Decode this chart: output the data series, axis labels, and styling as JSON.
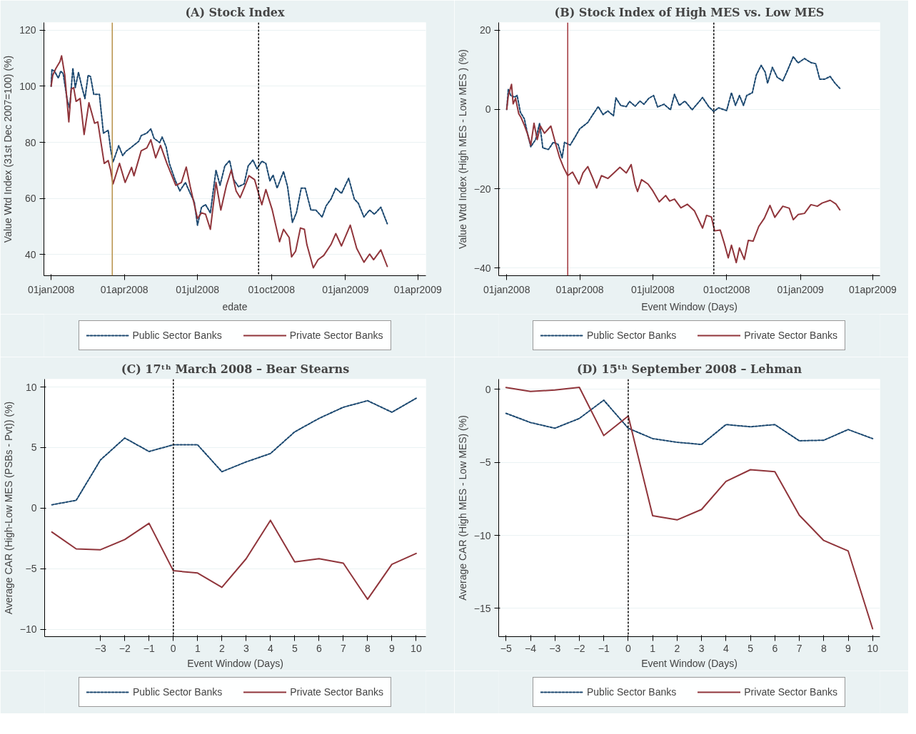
{
  "chart_data": [
    {
      "type": "line",
      "title": "(A) Stock Index",
      "xlabel": "edate",
      "ylabel": "Value Wtd Index (31st Dec 2007=100) (%)",
      "xlim": [
        "2007-12-23",
        "2009-04-11"
      ],
      "xticks": [
        {
          "value": "2008-01-01",
          "label": "01jan2008"
        },
        {
          "value": "2008-04-01",
          "label": "01apr2008"
        },
        {
          "value": "2008-07-01",
          "label": "01jul2008"
        },
        {
          "value": "2008-10-01",
          "label": "01oct2008"
        },
        {
          "value": "2009-01-01",
          "label": "01jan2009"
        },
        {
          "value": "2009-04-01",
          "label": "01apr2009"
        }
      ],
      "ylim": [
        32.5,
        122.7
      ],
      "yticks": [
        40,
        60,
        80,
        100,
        120
      ],
      "grid": "y",
      "legend": "bottom",
      "ref_lines": [
        {
          "axis": "x",
          "value": "2008-03-17",
          "color": "#b8924a",
          "line_style": "solid"
        },
        {
          "axis": "x",
          "value": "2008-09-15",
          "color": "#000000",
          "line_style": "dashed"
        }
      ],
      "series": [
        {
          "name": "Public Sector Banks",
          "color": "#1a476f",
          "line_style": "dashed",
          "x": [
            "2008-01-01",
            "2008-01-02",
            "2008-01-05",
            "2008-01-10",
            "2008-01-13",
            "2008-01-16",
            "2008-01-21",
            "2008-01-24",
            "2008-01-28",
            "2008-01-31",
            "2008-02-04",
            "2008-02-08",
            "2008-02-12",
            "2008-02-16",
            "2008-02-19",
            "2008-02-23",
            "2008-03-01",
            "2008-03-06",
            "2008-03-12",
            "2008-03-15",
            "2008-03-18",
            "2008-03-25",
            "2008-03-30",
            "2008-04-03",
            "2008-04-10",
            "2008-04-19",
            "2008-04-22",
            "2008-04-29",
            "2008-05-04",
            "2008-05-08",
            "2008-05-15",
            "2008-05-18",
            "2008-05-23",
            "2008-05-27",
            "2008-06-03",
            "2008-06-09",
            "2008-06-16",
            "2008-06-22",
            "2008-06-27",
            "2008-07-01",
            "2008-07-06",
            "2008-07-11",
            "2008-07-17",
            "2008-07-24",
            "2008-07-29",
            "2008-08-04",
            "2008-08-10",
            "2008-08-15",
            "2008-08-21",
            "2008-08-28",
            "2008-09-02",
            "2008-09-08",
            "2008-09-13",
            "2008-09-19",
            "2008-09-24",
            "2008-09-29",
            "2008-10-03",
            "2008-10-08",
            "2008-10-16",
            "2008-10-21",
            "2008-10-27",
            "2008-11-01",
            "2008-11-07",
            "2008-11-12",
            "2008-11-19",
            "2008-11-25",
            "2008-12-03",
            "2008-12-08",
            "2008-12-14",
            "2008-12-20",
            "2008-12-27",
            "2009-01-05",
            "2009-01-12",
            "2009-01-17",
            "2009-01-24",
            "2009-01-31",
            "2009-02-06",
            "2009-02-14",
            "2009-02-22"
          ],
          "values": [
            100,
            105.9,
            105.4,
            102.9,
            105.4,
            104.4,
            95.1,
            92.2,
            106.4,
            99.5,
            104.9,
            100,
            95.6,
            103.9,
            103.4,
            97.1,
            97.1,
            83.3,
            84.3,
            77.5,
            73.0,
            78.8,
            75.3,
            76.8,
            78.3,
            80.4,
            82.4,
            83.3,
            84.8,
            81.4,
            79.9,
            81.9,
            78.4,
            72.5,
            66.7,
            62.7,
            65.7,
            61.8,
            58.8,
            50.5,
            56.9,
            57.8,
            54.9,
            70.1,
            64.7,
            71.6,
            73.5,
            66.7,
            64.2,
            65.2,
            71.6,
            73.7,
            70.6,
            73.3,
            72.5,
            66.3,
            68.3,
            63.7,
            69.6,
            64.2,
            51.5,
            54.9,
            63.7,
            63.7,
            55.9,
            55.9,
            53.4,
            57.4,
            59.8,
            63.7,
            61.8,
            67.2,
            59.8,
            58.3,
            53.4,
            55.9,
            54.4,
            56.9,
            51.0
          ]
        },
        {
          "name": "Private Sector Banks",
          "color": "#90353b",
          "line_style": "solid",
          "x": [
            "2008-01-01",
            "2008-01-03",
            "2008-01-07",
            "2008-01-12",
            "2008-01-14",
            "2008-01-18",
            "2008-01-23",
            "2008-01-26",
            "2008-01-29",
            "2008-02-01",
            "2008-02-06",
            "2008-02-11",
            "2008-02-17",
            "2008-02-24",
            "2008-02-28",
            "2008-03-07",
            "2008-03-12",
            "2008-03-15",
            "2008-03-18",
            "2008-03-26",
            "2008-04-02",
            "2008-04-10",
            "2008-04-13",
            "2008-04-22",
            "2008-04-29",
            "2008-05-04",
            "2008-05-10",
            "2008-05-16",
            "2008-05-24",
            "2008-06-04",
            "2008-06-11",
            "2008-06-17",
            "2008-06-22",
            "2008-07-01",
            "2008-07-06",
            "2008-07-11",
            "2008-07-17",
            "2008-07-24",
            "2008-07-30",
            "2008-08-06",
            "2008-08-12",
            "2008-08-18",
            "2008-08-23",
            "2008-08-28",
            "2008-09-03",
            "2008-09-10",
            "2008-09-19",
            "2008-09-24",
            "2008-10-02",
            "2008-10-11",
            "2008-10-16",
            "2008-10-23",
            "2008-10-26",
            "2008-10-31",
            "2008-11-06",
            "2008-11-11",
            "2008-11-14",
            "2008-11-22",
            "2008-11-28",
            "2008-12-05",
            "2008-12-14",
            "2008-12-20",
            "2008-12-27",
            "2009-01-07",
            "2009-01-15",
            "2009-01-24",
            "2009-01-31",
            "2009-02-05",
            "2009-02-14",
            "2009-02-22"
          ],
          "values": [
            100,
            103.9,
            106.4,
            108.8,
            110.8,
            103.9,
            87.3,
            99.0,
            99.5,
            94.6,
            95.6,
            82.8,
            94.1,
            86.8,
            87.3,
            72.5,
            73.5,
            70.1,
            65.2,
            72.5,
            65.7,
            71.1,
            68.1,
            77.0,
            78.0,
            80.9,
            74.5,
            78.9,
            72.5,
            64.7,
            65.7,
            71.2,
            64.2,
            52.9,
            54.9,
            54.4,
            49.0,
            65.7,
            55.9,
            64.7,
            70.1,
            62.7,
            60.3,
            63.7,
            68.1,
            66.7,
            57.8,
            63.2,
            55.9,
            44.6,
            49.0,
            46.1,
            39.2,
            41.2,
            49.5,
            49.0,
            43.6,
            35.3,
            38.2,
            39.7,
            43.6,
            47.5,
            43.1,
            50.5,
            42.2,
            37.3,
            40.2,
            38.2,
            41.7,
            35.8
          ]
        }
      ]
    },
    {
      "type": "line",
      "title": "(B) Stock Index of High MES vs. Low MES",
      "xlabel": "Event Window (Days)",
      "ylabel": "Value Wtd Index (High MES - Low MES ) (%)",
      "xlim": [
        "2007-12-22",
        "2009-04-10"
      ],
      "xticks": [
        {
          "value": "2008-01-01",
          "label": "01jan2008"
        },
        {
          "value": "2008-04-01",
          "label": "01apr2008"
        },
        {
          "value": "2008-07-01",
          "label": "01jul2008"
        },
        {
          "value": "2008-10-01",
          "label": "01oct2008"
        },
        {
          "value": "2009-01-01",
          "label": "01jan2009"
        },
        {
          "value": "2009-04-01",
          "label": "01apr2009"
        }
      ],
      "ylim": [
        -41.9,
        21.9
      ],
      "yticks": [
        -40,
        -20,
        0,
        20
      ],
      "grid": "y",
      "legend": "bottom",
      "ref_lines": [
        {
          "axis": "x",
          "value": "2008-03-17",
          "color": "#a0343a",
          "line_style": "solid"
        },
        {
          "axis": "x",
          "value": "2008-09-15",
          "color": "#000000",
          "line_style": "dashed"
        }
      ],
      "series": [
        {
          "name": "Public Sector Banks",
          "color": "#1a476f",
          "line_style": "dashed",
          "x": [
            "2008-01-01",
            "2008-01-03",
            "2008-01-06",
            "2008-01-11",
            "2008-01-14",
            "2008-01-18",
            "2008-01-23",
            "2008-01-27",
            "2008-01-31",
            "2008-02-06",
            "2008-02-11",
            "2008-02-15",
            "2008-02-22",
            "2008-02-28",
            "2008-03-05",
            "2008-03-10",
            "2008-03-13",
            "2008-03-20",
            "2008-03-26",
            "2008-04-01",
            "2008-04-11",
            "2008-04-17",
            "2008-04-24",
            "2008-04-30",
            "2008-05-06",
            "2008-05-13",
            "2008-05-16",
            "2008-05-22",
            "2008-05-29",
            "2008-06-02",
            "2008-06-09",
            "2008-06-15",
            "2008-06-20",
            "2008-06-26",
            "2008-07-02",
            "2008-07-07",
            "2008-07-15",
            "2008-07-23",
            "2008-07-28",
            "2008-08-03",
            "2008-08-10",
            "2008-08-19",
            "2008-08-25",
            "2008-09-01",
            "2008-09-09",
            "2008-09-15",
            "2008-09-21",
            "2008-10-01",
            "2008-10-07",
            "2008-10-12",
            "2008-10-17",
            "2008-10-22",
            "2008-10-26",
            "2008-11-02",
            "2008-11-07",
            "2008-11-13",
            "2008-11-18",
            "2008-11-21",
            "2008-11-27",
            "2008-12-03",
            "2008-12-10",
            "2008-12-16",
            "2008-12-23",
            "2008-12-29",
            "2009-01-06",
            "2009-01-14",
            "2009-01-20",
            "2009-01-25",
            "2009-01-31",
            "2009-02-07",
            "2009-02-13",
            "2009-02-19"
          ],
          "values": [
            0.0,
            5.1,
            3.5,
            3.1,
            3.5,
            -0.7,
            -2.4,
            -6.2,
            -9.4,
            -7.6,
            -3.5,
            -9.7,
            -10.1,
            -8.3,
            -8.8,
            -12.2,
            -8.3,
            -9.0,
            -7.0,
            -4.9,
            -3.3,
            -1.4,
            0.7,
            -1.3,
            -0.4,
            -1.6,
            2.9,
            1.0,
            0.7,
            2.0,
            0.8,
            2.1,
            1.3,
            2.8,
            3.5,
            0.6,
            1.3,
            -0.1,
            3.8,
            1.0,
            2.1,
            -0.1,
            1.3,
            3.0,
            0.6,
            -0.5,
            0.4,
            -0.3,
            4.2,
            1.0,
            3.5,
            1.0,
            3.5,
            4.2,
            8.7,
            11.1,
            9.4,
            6.6,
            10.6,
            8.1,
            7.2,
            9.9,
            13.3,
            11.7,
            12.8,
            11.8,
            11.5,
            7.6,
            7.6,
            8.3,
            6.6,
            5.3
          ]
        },
        {
          "name": "Private Sector Banks",
          "color": "#90353b",
          "line_style": "solid",
          "x": [
            "2008-01-01",
            "2008-01-03",
            "2008-01-07",
            "2008-01-09",
            "2008-01-12",
            "2008-01-16",
            "2008-01-19",
            "2008-01-23",
            "2008-01-27",
            "2008-01-31",
            "2008-02-04",
            "2008-02-08",
            "2008-02-12",
            "2008-02-17",
            "2008-02-25",
            "2008-03-02",
            "2008-03-07",
            "2008-03-12",
            "2008-03-17",
            "2008-03-23",
            "2008-03-31",
            "2008-04-05",
            "2008-04-11",
            "2008-04-17",
            "2008-04-22",
            "2008-04-28",
            "2008-05-06",
            "2008-05-13",
            "2008-05-21",
            "2008-05-29",
            "2008-06-04",
            "2008-06-09",
            "2008-06-12",
            "2008-06-17",
            "2008-06-25",
            "2008-07-01",
            "2008-07-09",
            "2008-07-17",
            "2008-07-22",
            "2008-07-28",
            "2008-08-05",
            "2008-08-13",
            "2008-08-22",
            "2008-09-01",
            "2008-09-06",
            "2008-09-12",
            "2008-09-16",
            "2008-09-23",
            "2008-09-28",
            "2008-10-03",
            "2008-10-07",
            "2008-10-13",
            "2008-10-17",
            "2008-10-23",
            "2008-10-28",
            "2008-11-03",
            "2008-11-10",
            "2008-11-17",
            "2008-11-24",
            "2008-11-30",
            "2008-12-10",
            "2008-12-18",
            "2008-12-23",
            "2008-12-29",
            "2009-01-06",
            "2009-01-14",
            "2009-01-22",
            "2009-01-28",
            "2009-02-07",
            "2009-02-14",
            "2009-02-19"
          ],
          "values": [
            0.0,
            3.5,
            6.3,
            1.4,
            2.8,
            -1.1,
            -2.1,
            -4.0,
            -6.2,
            -9.0,
            -3.5,
            -7.6,
            -4.2,
            -6.0,
            -4.2,
            -8.7,
            -12.2,
            -14.7,
            -16.7,
            -15.8,
            -18.8,
            -16.0,
            -14.4,
            -17.2,
            -19.8,
            -16.7,
            -17.4,
            -16.1,
            -14.6,
            -16.0,
            -13.9,
            -18.9,
            -20.7,
            -17.7,
            -18.8,
            -20.5,
            -23.3,
            -21.7,
            -23.1,
            -22.6,
            -24.8,
            -23.9,
            -25.6,
            -29.9,
            -26.7,
            -27.1,
            -30.6,
            -30.4,
            -33.7,
            -37.4,
            -34.2,
            -38.6,
            -34.9,
            -37.8,
            -33.0,
            -33.2,
            -29.5,
            -27.4,
            -24.2,
            -27.2,
            -24.4,
            -24.9,
            -27.8,
            -26.5,
            -26.2,
            -24.0,
            -24.4,
            -23.6,
            -22.9,
            -23.8,
            -25.3
          ]
        }
      ]
    },
    {
      "type": "line",
      "title": "(C) 17ᵗʰ March 2008 – Bear Stearns",
      "xlabel": "Event Window (Days)",
      "ylabel": "Average CAR (High-Low MES (PSBs - Pvt)) (%)",
      "xlim": [
        -5.3,
        10.4
      ],
      "xticks": [
        -3,
        -2,
        -1,
        0,
        1,
        2,
        3,
        4,
        5,
        6,
        7,
        8,
        9,
        10
      ],
      "ylim": [
        -10.6,
        10.65
      ],
      "yticks": [
        -10,
        -5,
        0,
        5,
        10
      ],
      "grid": "y",
      "legend": "bottom",
      "ref_lines": [
        {
          "axis": "x",
          "value": 0,
          "color": "#000000",
          "line_style": "dashed"
        }
      ],
      "x": [
        -5,
        -4,
        -3,
        -2,
        -1,
        0,
        1,
        2,
        3,
        4,
        5,
        6,
        7,
        8,
        9,
        10
      ],
      "series": [
        {
          "name": "Public Sector Banks",
          "color": "#1a476f",
          "line_style": "dashed",
          "values": [
            0.28,
            0.65,
            3.98,
            5.79,
            4.68,
            5.23,
            5.23,
            3.01,
            3.82,
            4.51,
            6.3,
            7.41,
            8.33,
            8.87,
            7.92,
            9.07
          ]
        },
        {
          "name": "Private Sector Banks",
          "color": "#90353b",
          "line_style": "solid",
          "values": [
            -1.97,
            -3.36,
            -3.43,
            -2.59,
            -1.25,
            -5.16,
            -5.35,
            -6.53,
            -4.17,
            -1.0,
            -4.44,
            -4.17,
            -4.54,
            -7.52,
            -4.63,
            -3.73
          ]
        }
      ]
    },
    {
      "type": "line",
      "title": "(D) 15ᵗʰ September 2008 – Lehman",
      "xlabel": "Event Window (Days)",
      "ylabel": "Average CAR (High MES - Low MES) (%)",
      "xlim": [
        -5.3,
        10.3
      ],
      "xticks": [
        -5,
        -4,
        -3,
        -2,
        -1,
        0,
        1,
        2,
        3,
        4,
        5,
        6,
        7,
        8,
        9,
        10
      ],
      "ylim": [
        -16.93,
        0.69
      ],
      "yticks": [
        -15,
        -10,
        -5,
        0
      ],
      "grid": "y",
      "legend": "bottom",
      "ref_lines": [
        {
          "axis": "x",
          "value": 0,
          "color": "#000000",
          "line_style": "dashed"
        }
      ],
      "x": [
        -5,
        -4,
        -3,
        -2,
        -1,
        0,
        1,
        2,
        3,
        4,
        5,
        6,
        7,
        8,
        9,
        10
      ],
      "series": [
        {
          "name": "Public Sector Banks",
          "color": "#1a476f",
          "line_style": "dashed",
          "values": [
            -1.65,
            -2.28,
            -2.67,
            -2.0,
            -0.75,
            -2.67,
            -3.38,
            -3.63,
            -3.78,
            -2.42,
            -2.57,
            -2.42,
            -3.53,
            -3.49,
            -2.76,
            -3.38
          ]
        },
        {
          "name": "Private Sector Banks",
          "color": "#90353b",
          "line_style": "solid",
          "values": [
            0.12,
            -0.15,
            -0.06,
            0.13,
            -3.17,
            -1.84,
            -8.66,
            -8.94,
            -8.23,
            -6.31,
            -5.51,
            -5.64,
            -8.62,
            -10.35,
            -11.07,
            -16.39
          ]
        }
      ]
    }
  ]
}
